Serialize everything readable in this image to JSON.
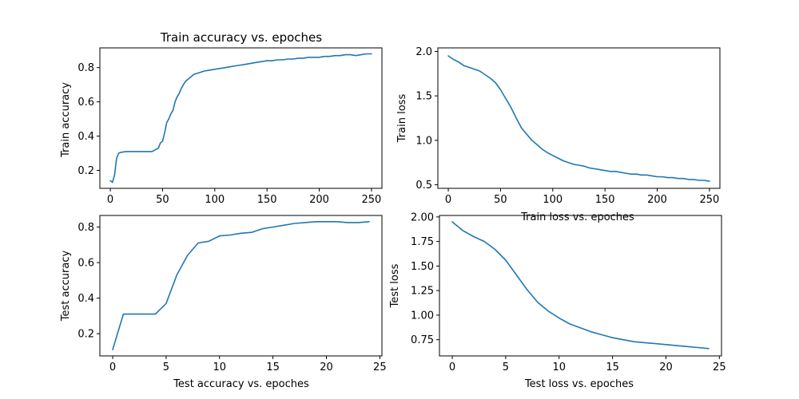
{
  "chart_data": [
    {
      "type": "line",
      "title": "Train accuracy vs. epoches",
      "xlabel": "",
      "ylabel": "Train accuracy",
      "xlim": [
        -10,
        260
      ],
      "ylim": [
        0.095,
        0.915
      ],
      "xticks": [
        0,
        50,
        100,
        150,
        200,
        250
      ],
      "yticks": [
        0.2,
        0.4,
        0.6,
        0.8
      ],
      "ytick_labels": [
        "0.2",
        "0.4",
        "0.6",
        "0.8"
      ],
      "grid": false,
      "color": "#1f77b4",
      "series": [
        {
          "x": [
            0,
            2,
            4,
            6,
            8,
            10,
            15,
            20,
            25,
            30,
            35,
            40,
            43,
            46,
            48,
            50,
            52,
            54,
            56,
            58,
            60,
            62,
            64,
            66,
            68,
            70,
            72,
            74,
            76,
            78,
            80,
            85,
            90,
            95,
            100,
            105,
            110,
            115,
            120,
            125,
            130,
            135,
            140,
            145,
            150,
            155,
            160,
            165,
            170,
            175,
            180,
            185,
            190,
            195,
            200,
            205,
            210,
            215,
            220,
            225,
            230,
            235,
            240,
            245,
            250
          ],
          "y": [
            0.14,
            0.13,
            0.17,
            0.27,
            0.3,
            0.305,
            0.31,
            0.31,
            0.31,
            0.31,
            0.31,
            0.31,
            0.32,
            0.33,
            0.36,
            0.37,
            0.42,
            0.48,
            0.5,
            0.53,
            0.55,
            0.6,
            0.63,
            0.65,
            0.68,
            0.7,
            0.72,
            0.73,
            0.74,
            0.75,
            0.76,
            0.77,
            0.78,
            0.785,
            0.79,
            0.795,
            0.8,
            0.805,
            0.81,
            0.815,
            0.82,
            0.825,
            0.83,
            0.835,
            0.84,
            0.84,
            0.845,
            0.845,
            0.85,
            0.85,
            0.855,
            0.855,
            0.86,
            0.86,
            0.86,
            0.865,
            0.865,
            0.87,
            0.87,
            0.875,
            0.875,
            0.87,
            0.875,
            0.88,
            0.88
          ]
        }
      ]
    },
    {
      "type": "line",
      "title": "",
      "xlabel": "Train loss vs. epoches",
      "ylabel": "Train loss",
      "xlim": [
        -10,
        260
      ],
      "ylim": [
        0.46,
        2.04
      ],
      "xticks": [
        0,
        50,
        100,
        150,
        200,
        250
      ],
      "yticks": [
        0.5,
        1.0,
        1.5,
        2.0
      ],
      "ytick_labels": [
        "0.5",
        "1.0",
        "1.5",
        "2.0"
      ],
      "grid": false,
      "color": "#1f77b4",
      "series": [
        {
          "x": [
            0,
            5,
            10,
            15,
            20,
            25,
            30,
            35,
            40,
            45,
            50,
            55,
            60,
            65,
            70,
            75,
            80,
            85,
            90,
            95,
            100,
            105,
            110,
            115,
            120,
            125,
            130,
            135,
            140,
            145,
            150,
            155,
            160,
            165,
            170,
            175,
            180,
            185,
            190,
            195,
            200,
            205,
            210,
            215,
            220,
            225,
            230,
            235,
            240,
            245,
            250
          ],
          "y": [
            1.95,
            1.91,
            1.88,
            1.84,
            1.82,
            1.8,
            1.78,
            1.74,
            1.7,
            1.65,
            1.57,
            1.47,
            1.37,
            1.25,
            1.14,
            1.07,
            1.0,
            0.95,
            0.9,
            0.86,
            0.83,
            0.8,
            0.77,
            0.75,
            0.73,
            0.72,
            0.71,
            0.69,
            0.68,
            0.67,
            0.66,
            0.65,
            0.65,
            0.64,
            0.63,
            0.62,
            0.62,
            0.61,
            0.61,
            0.6,
            0.59,
            0.59,
            0.58,
            0.58,
            0.57,
            0.57,
            0.56,
            0.56,
            0.55,
            0.55,
            0.54
          ]
        }
      ]
    },
    {
      "type": "line",
      "title": "",
      "xlabel": "Test accuracy vs. epoches",
      "ylabel": "Test accuracy",
      "xlim": [
        -1.2,
        25.2
      ],
      "ylim": [
        0.075,
        0.865
      ],
      "xticks": [
        0,
        5,
        10,
        15,
        20,
        25
      ],
      "yticks": [
        0.2,
        0.4,
        0.6,
        0.8
      ],
      "ytick_labels": [
        "0.2",
        "0.4",
        "0.6",
        "0.8"
      ],
      "grid": false,
      "color": "#1f77b4",
      "series": [
        {
          "x": [
            0,
            1,
            2,
            3,
            4,
            5,
            6,
            7,
            8,
            9,
            10,
            11,
            12,
            13,
            14,
            15,
            16,
            17,
            18,
            19,
            20,
            21,
            22,
            23,
            24
          ],
          "y": [
            0.11,
            0.31,
            0.31,
            0.31,
            0.31,
            0.37,
            0.53,
            0.64,
            0.71,
            0.72,
            0.75,
            0.755,
            0.765,
            0.77,
            0.79,
            0.8,
            0.81,
            0.82,
            0.825,
            0.83,
            0.83,
            0.83,
            0.825,
            0.825,
            0.83
          ]
        }
      ]
    },
    {
      "type": "line",
      "title": "",
      "xlabel": "Test loss vs. epoches",
      "ylabel": "Test loss",
      "xlim": [
        -1.2,
        25.2
      ],
      "ylim": [
        0.585,
        2.015
      ],
      "xticks": [
        0,
        5,
        10,
        15,
        20,
        25
      ],
      "yticks": [
        0.75,
        1.0,
        1.25,
        1.5,
        1.75,
        2.0
      ],
      "ytick_labels": [
        "0.75",
        "1.00",
        "1.25",
        "1.50",
        "1.75",
        "2.00"
      ],
      "grid": false,
      "color": "#1f77b4",
      "series": [
        {
          "x": [
            0,
            1,
            2,
            3,
            4,
            5,
            6,
            7,
            8,
            9,
            10,
            11,
            12,
            13,
            14,
            15,
            16,
            17,
            18,
            19,
            20,
            21,
            22,
            23,
            24
          ],
          "y": [
            1.95,
            1.86,
            1.8,
            1.75,
            1.67,
            1.56,
            1.41,
            1.26,
            1.13,
            1.04,
            0.97,
            0.91,
            0.87,
            0.83,
            0.8,
            0.77,
            0.75,
            0.73,
            0.72,
            0.71,
            0.7,
            0.69,
            0.68,
            0.67,
            0.66
          ]
        }
      ]
    }
  ]
}
